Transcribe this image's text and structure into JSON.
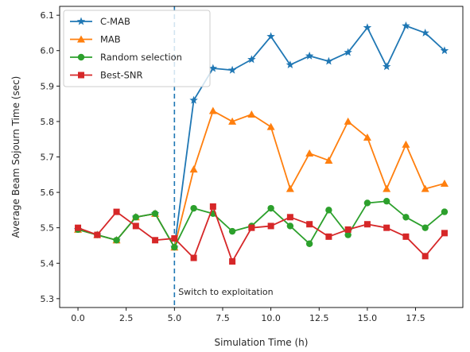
{
  "chart_data": {
    "type": "line",
    "xlabel": "Simulation Time (h)",
    "ylabel": "Average Beam Sojourn Time (sec)",
    "xlim": [
      -0.95,
      19.95
    ],
    "ylim": [
      5.275,
      6.125
    ],
    "xticks": [
      "0.0",
      "2.5",
      "5.0",
      "7.5",
      "10.0",
      "12.5",
      "15.0",
      "17.5"
    ],
    "yticks": [
      "5.3",
      "5.4",
      "5.5",
      "5.6",
      "5.7",
      "5.8",
      "5.9",
      "6.0",
      "6.1"
    ],
    "x": [
      0,
      1,
      2,
      3,
      4,
      5,
      6,
      7,
      8,
      9,
      10,
      11,
      12,
      13,
      14,
      15,
      16,
      17,
      18,
      19
    ],
    "legend_position": "upper-left",
    "series": [
      {
        "name": "C-MAB",
        "color": "#1f77b4",
        "marker": "star",
        "values": [
          5.495,
          5.48,
          5.465,
          5.53,
          5.54,
          5.445,
          5.86,
          5.95,
          5.945,
          5.975,
          6.04,
          5.96,
          5.985,
          5.97,
          5.995,
          6.065,
          5.955,
          6.07,
          6.05,
          6.0
        ]
      },
      {
        "name": "MAB",
        "color": "#ff7f0e",
        "marker": "triangle",
        "values": [
          5.495,
          5.48,
          5.465,
          5.53,
          5.54,
          5.445,
          5.665,
          5.83,
          5.8,
          5.82,
          5.785,
          5.61,
          5.71,
          5.69,
          5.8,
          5.755,
          5.61,
          5.735,
          5.61,
          5.625
        ]
      },
      {
        "name": "Random selection",
        "color": "#2ca02c",
        "marker": "circle",
        "values": [
          5.495,
          5.48,
          5.465,
          5.53,
          5.54,
          5.445,
          5.555,
          5.54,
          5.49,
          5.505,
          5.555,
          5.505,
          5.455,
          5.55,
          5.48,
          5.57,
          5.575,
          5.53,
          5.5,
          5.545
        ]
      },
      {
        "name": "Best-SNR",
        "color": "#d62728",
        "marker": "square",
        "values": [
          5.5,
          5.48,
          5.545,
          5.505,
          5.465,
          5.47,
          5.415,
          5.56,
          5.405,
          5.5,
          5.505,
          5.53,
          5.51,
          5.475,
          5.495,
          5.51,
          5.5,
          5.475,
          5.42,
          5.485
        ]
      }
    ],
    "vline": {
      "x": 5,
      "color": "#1f77b4",
      "style": "dashed"
    },
    "annotations": [
      {
        "text": "Switch to exploitation",
        "x": 5.2,
        "y": 5.32
      }
    ]
  }
}
